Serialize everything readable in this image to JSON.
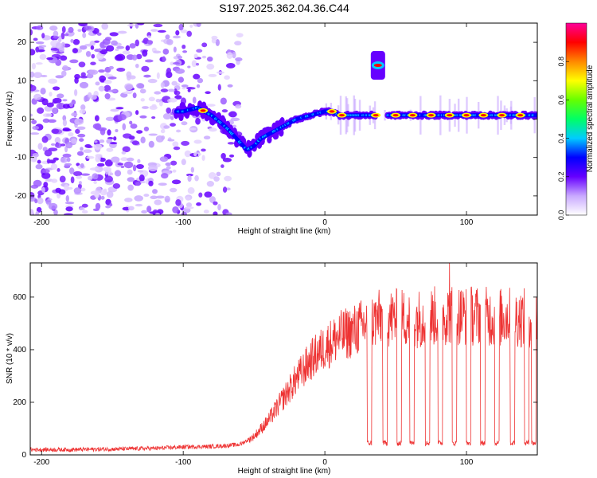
{
  "title": "S197.2025.362.04.36.C44",
  "chart_data": [
    {
      "type": "heatmap",
      "name": "spectrogram",
      "xlabel": "Height of straight line (km)",
      "ylabel": "Frequency (Hz)",
      "xlim": [
        -208,
        150
      ],
      "ylim": [
        -25,
        25
      ],
      "xticks": [
        -200,
        -100,
        0,
        100
      ],
      "yticks": [
        -20,
        -10,
        0,
        10,
        20
      ],
      "colorbar": {
        "label": "Normalized spectral amplitude",
        "range": [
          0.0,
          1.0
        ],
        "ticks": [
          0.0,
          0.2,
          0.4,
          0.6,
          0.8
        ],
        "colors": [
          "#ffffff",
          "#c9a9ff",
          "#6600ff",
          "#0000ff",
          "#00ccff",
          "#00ff66",
          "#66ff00",
          "#ffff00",
          "#ff8800",
          "#ff0000",
          "#ff0099"
        ]
      },
      "signal_track": {
        "x": [
          -100,
          -90,
          -80,
          -70,
          -60,
          -55,
          -50,
          -45,
          -40,
          -30,
          -20,
          -10,
          0,
          5,
          10,
          20,
          30,
          40,
          50,
          60,
          70,
          80,
          90,
          100,
          110,
          120,
          130,
          140,
          150
        ],
        "y": [
          2,
          3,
          1,
          -2,
          -6,
          -8,
          -7,
          -5,
          -4,
          -2,
          0,
          1,
          2,
          2,
          1,
          1,
          1,
          1,
          1,
          1,
          1,
          1,
          1,
          1,
          1,
          1,
          1,
          1,
          1
        ]
      },
      "peak_markers_x": [
        -86,
        5,
        12,
        36,
        50,
        62,
        75,
        88,
        100,
        112,
        125,
        138
      ],
      "secondary_blob": {
        "x": [
          33,
          42
        ],
        "y": 14
      },
      "noise_region_x": [
        -208,
        -60
      ]
    },
    {
      "type": "line",
      "name": "snr",
      "xlabel": "Height of straight line (km)",
      "ylabel": "SNR (10 * v/v)",
      "xlim": [
        -208,
        150
      ],
      "ylim": [
        0,
        730
      ],
      "xticks": [
        -200,
        -100,
        0,
        100
      ],
      "yticks": [
        0,
        200,
        400,
        600
      ],
      "color": "#ee3333",
      "x": [
        -208,
        -180,
        -150,
        -120,
        -100,
        -80,
        -70,
        -60,
        -50,
        -40,
        -30,
        -20,
        -10,
        0,
        10,
        20,
        30,
        40,
        50,
        60,
        70,
        80,
        90,
        100,
        110,
        120,
        130,
        140,
        150
      ],
      "y": [
        20,
        20,
        22,
        25,
        30,
        32,
        35,
        40,
        70,
        130,
        210,
        290,
        360,
        410,
        450,
        470,
        500,
        520,
        520,
        520,
        520,
        530,
        535,
        530,
        530,
        520,
        525,
        520,
        520
      ],
      "dropouts": [
        [
          30,
          33
        ],
        [
          41,
          44
        ],
        [
          51,
          54
        ],
        [
          60,
          63
        ],
        [
          71,
          74
        ],
        [
          80,
          83
        ],
        [
          90,
          93
        ],
        [
          100,
          103
        ],
        [
          110,
          113
        ],
        [
          120,
          123
        ],
        [
          131,
          134
        ],
        [
          141,
          144
        ],
        [
          146,
          149
        ]
      ],
      "dropout_level": 45,
      "peak": {
        "x": 88,
        "y": 730
      }
    }
  ]
}
